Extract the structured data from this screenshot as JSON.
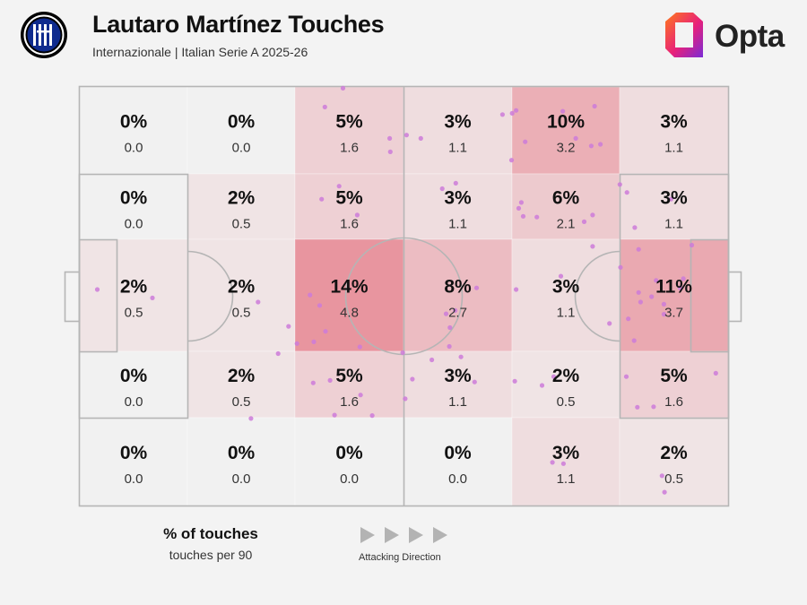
{
  "header": {
    "title": "Lautaro Martínez Touches",
    "subtitle": "Internazionale | Italian Serie A 2025-26",
    "brand": "Opta"
  },
  "colors": {
    "cell_base": "#f1f1f1",
    "cell_heat": "#e8959f",
    "dot": "#cc7bd9",
    "line": "#b5b5b5",
    "badge": "#0f2b8e"
  },
  "legend": {
    "primary": "% of touches",
    "secondary": "touches per 90",
    "direction": "Attacking Direction"
  },
  "chart_data": {
    "type": "heatmap",
    "title": "Lautaro Martínez Touches",
    "subtitle": "Internazionale | Italian Serie A 2025-26",
    "rows": 5,
    "columns": 6,
    "attacking_direction": "left-to-right",
    "cells": [
      [
        {
          "pct": "0%",
          "per90": "0.0"
        },
        {
          "pct": "0%",
          "per90": "0.0"
        },
        {
          "pct": "5%",
          "per90": "1.6"
        },
        {
          "pct": "3%",
          "per90": "1.1"
        },
        {
          "pct": "10%",
          "per90": "3.2"
        },
        {
          "pct": "3%",
          "per90": "1.1"
        }
      ],
      [
        {
          "pct": "0%",
          "per90": "0.0"
        },
        {
          "pct": "2%",
          "per90": "0.5"
        },
        {
          "pct": "5%",
          "per90": "1.6"
        },
        {
          "pct": "3%",
          "per90": "1.1"
        },
        {
          "pct": "6%",
          "per90": "2.1"
        },
        {
          "pct": "3%",
          "per90": "1.1"
        }
      ],
      [
        {
          "pct": "2%",
          "per90": "0.5"
        },
        {
          "pct": "2%",
          "per90": "0.5"
        },
        {
          "pct": "14%",
          "per90": "4.8"
        },
        {
          "pct": "8%",
          "per90": "2.7"
        },
        {
          "pct": "3%",
          "per90": "1.1"
        },
        {
          "pct": "11%",
          "per90": "3.7"
        }
      ],
      [
        {
          "pct": "0%",
          "per90": "0.0"
        },
        {
          "pct": "2%",
          "per90": "0.5"
        },
        {
          "pct": "5%",
          "per90": "1.6"
        },
        {
          "pct": "3%",
          "per90": "1.1"
        },
        {
          "pct": "2%",
          "per90": "0.5"
        },
        {
          "pct": "5%",
          "per90": "1.6"
        }
      ],
      [
        {
          "pct": "0%",
          "per90": "0.0"
        },
        {
          "pct": "0%",
          "per90": "0.0"
        },
        {
          "pct": "0%",
          "per90": "0.0"
        },
        {
          "pct": "0%",
          "per90": "0.0"
        },
        {
          "pct": "3%",
          "per90": "1.1"
        },
        {
          "pct": "2%",
          "per90": "0.5"
        }
      ]
    ],
    "touches_note": "individual touches shown as dots, in pitch fractions (x: 0 = own goal line, 1 = opponent goal line; y: 0 = top touchline, 1 = bottom touchline)",
    "touches": [
      [
        0.406,
        0.003
      ],
      [
        0.378,
        0.048
      ],
      [
        0.478,
        0.123
      ],
      [
        0.526,
        0.123
      ],
      [
        0.479,
        0.155
      ],
      [
        0.504,
        0.115
      ],
      [
        0.667,
        0.063
      ],
      [
        0.673,
        0.056
      ],
      [
        0.745,
        0.058
      ],
      [
        0.794,
        0.046
      ],
      [
        0.765,
        0.123
      ],
      [
        0.789,
        0.141
      ],
      [
        0.652,
        0.066
      ],
      [
        0.687,
        0.131
      ],
      [
        0.803,
        0.137
      ],
      [
        0.666,
        0.175
      ],
      [
        0.4,
        0.237
      ],
      [
        0.373,
        0.268
      ],
      [
        0.428,
        0.306
      ],
      [
        0.58,
        0.23
      ],
      [
        0.559,
        0.243
      ],
      [
        0.677,
        0.29
      ],
      [
        0.681,
        0.276
      ],
      [
        0.684,
        0.309
      ],
      [
        0.705,
        0.311
      ],
      [
        0.778,
        0.322
      ],
      [
        0.856,
        0.336
      ],
      [
        0.844,
        0.252
      ],
      [
        0.833,
        0.233
      ],
      [
        0.912,
        0.268
      ],
      [
        0.944,
        0.378
      ],
      [
        0.791,
        0.381
      ],
      [
        0.791,
        0.306
      ],
      [
        0.834,
        0.431
      ],
      [
        0.862,
        0.388
      ],
      [
        0.889,
        0.462
      ],
      [
        0.931,
        0.458
      ],
      [
        0.926,
        0.48
      ],
      [
        0.862,
        0.491
      ],
      [
        0.882,
        0.501
      ],
      [
        0.901,
        0.519
      ],
      [
        0.901,
        0.543
      ],
      [
        0.865,
        0.514
      ],
      [
        0.846,
        0.554
      ],
      [
        0.855,
        0.606
      ],
      [
        0.817,
        0.565
      ],
      [
        0.742,
        0.452
      ],
      [
        0.673,
        0.484
      ],
      [
        0.612,
        0.48
      ],
      [
        0.579,
        0.534
      ],
      [
        0.565,
        0.542
      ],
      [
        0.57,
        0.62
      ],
      [
        0.498,
        0.635
      ],
      [
        0.571,
        0.575
      ],
      [
        0.432,
        0.621
      ],
      [
        0.355,
        0.497
      ],
      [
        0.37,
        0.522
      ],
      [
        0.322,
        0.572
      ],
      [
        0.379,
        0.584
      ],
      [
        0.335,
        0.613
      ],
      [
        0.361,
        0.609
      ],
      [
        0.306,
        0.637
      ],
      [
        0.275,
        0.514
      ],
      [
        0.027,
        0.484
      ],
      [
        0.112,
        0.504
      ],
      [
        0.543,
        0.652
      ],
      [
        0.588,
        0.645
      ],
      [
        0.386,
        0.701
      ],
      [
        0.433,
        0.736
      ],
      [
        0.451,
        0.785
      ],
      [
        0.393,
        0.784
      ],
      [
        0.36,
        0.707
      ],
      [
        0.502,
        0.745
      ],
      [
        0.513,
        0.698
      ],
      [
        0.609,
        0.705
      ],
      [
        0.671,
        0.703
      ],
      [
        0.713,
        0.713
      ],
      [
        0.731,
        0.692
      ],
      [
        0.843,
        0.692
      ],
      [
        0.86,
        0.765
      ],
      [
        0.981,
        0.684
      ],
      [
        0.885,
        0.764
      ],
      [
        0.264,
        0.792
      ],
      [
        0.729,
        0.897
      ],
      [
        0.746,
        0.9
      ],
      [
        0.898,
        0.929
      ],
      [
        0.902,
        0.968
      ]
    ]
  }
}
